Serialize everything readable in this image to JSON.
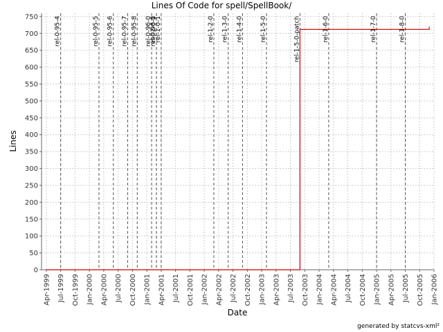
{
  "chart_data": {
    "type": "line",
    "title": "Lines Of Code for spell/SpellBook/",
    "x_label": "Date",
    "y_label": "Lines",
    "footer": "generated by statcvs-xml²",
    "x": [
      "1999-04",
      "2003-09",
      "2003-09",
      "2005-12",
      "2005-12"
    ],
    "series": [
      {
        "name": "Lines",
        "color": "#cc0000",
        "values": [
          0,
          0,
          712,
          712,
          720
        ]
      }
    ],
    "step": true,
    "xlim": [
      "1999-03",
      "2006-01"
    ],
    "xticks": [
      {
        "value": "1999-04",
        "label": "Apr-1999"
      },
      {
        "value": "1999-07",
        "label": "Jul-1999"
      },
      {
        "value": "1999-10",
        "label": "Oct-1999"
      },
      {
        "value": "2000-01",
        "label": "Jan-2000"
      },
      {
        "value": "2000-04",
        "label": "Apr-2000"
      },
      {
        "value": "2000-07",
        "label": "Jul-2000"
      },
      {
        "value": "2000-10",
        "label": "Oct-2000"
      },
      {
        "value": "2001-01",
        "label": "Jan-2001"
      },
      {
        "value": "2001-04",
        "label": "Apr-2001"
      },
      {
        "value": "2001-07",
        "label": "Jul-2001"
      },
      {
        "value": "2001-10",
        "label": "Oct-2001"
      },
      {
        "value": "2002-01",
        "label": "Jan-2002"
      },
      {
        "value": "2002-04",
        "label": "Apr-2002"
      },
      {
        "value": "2002-07",
        "label": "Jul-2002"
      },
      {
        "value": "2002-10",
        "label": "Oct-2002"
      },
      {
        "value": "2003-01",
        "label": "Jan-2003"
      },
      {
        "value": "2003-04",
        "label": "Apr-2003"
      },
      {
        "value": "2003-07",
        "label": "Jul-2003"
      },
      {
        "value": "2003-10",
        "label": "Oct-2003"
      },
      {
        "value": "2004-01",
        "label": "Jan-2004"
      },
      {
        "value": "2004-04",
        "label": "Apr-2004"
      },
      {
        "value": "2004-07",
        "label": "Jul-2004"
      },
      {
        "value": "2004-10",
        "label": "Oct-2004"
      },
      {
        "value": "2005-01",
        "label": "Jan-2005"
      },
      {
        "value": "2005-04",
        "label": "Apr-2005"
      },
      {
        "value": "2005-07",
        "label": "Jul-2005"
      },
      {
        "value": "2005-10",
        "label": "Oct-2005"
      },
      {
        "value": "2006-01",
        "label": "Jan-2006"
      }
    ],
    "ylim": [
      0,
      760
    ],
    "yticks": [
      0,
      50,
      100,
      150,
      200,
      250,
      300,
      350,
      400,
      450,
      500,
      550,
      600,
      650,
      700,
      750
    ],
    "grid": true,
    "markers": [
      {
        "label": "rel-0-95-4",
        "x": "1999-07"
      },
      {
        "label": "rel-0-95-5",
        "x": "2000-03"
      },
      {
        "label": "rel-0-95-6",
        "x": "2000-06"
      },
      {
        "label": "rel-0-95-7",
        "x": "2000-09"
      },
      {
        "label": "rel-0-95-8",
        "x": "2000-11"
      },
      {
        "label": "rel-0-96-0",
        "x": "2001-02"
      },
      {
        "label": "rel-0-96-1",
        "x": "2001-03"
      },
      {
        "label": "rel-1-0-0",
        "x": "2001-03"
      },
      {
        "label": "rel-1-0-1",
        "x": "2001-04"
      },
      {
        "label": "rel-1-2-0",
        "x": "2002-03"
      },
      {
        "label": "rel-1-3-0",
        "x": "2002-06"
      },
      {
        "label": "rel-1-4-0",
        "x": "2002-09"
      },
      {
        "label": "rel-1-5-0",
        "x": "2003-02"
      },
      {
        "label": "rel-1-5-0-patch",
        "x": "2003-09"
      },
      {
        "label": "rel-1-6-0",
        "x": "2004-03"
      },
      {
        "label": "rel-1-7-0",
        "x": "2005-01"
      },
      {
        "label": "rel-1-8-0",
        "x": "2005-07"
      }
    ]
  }
}
